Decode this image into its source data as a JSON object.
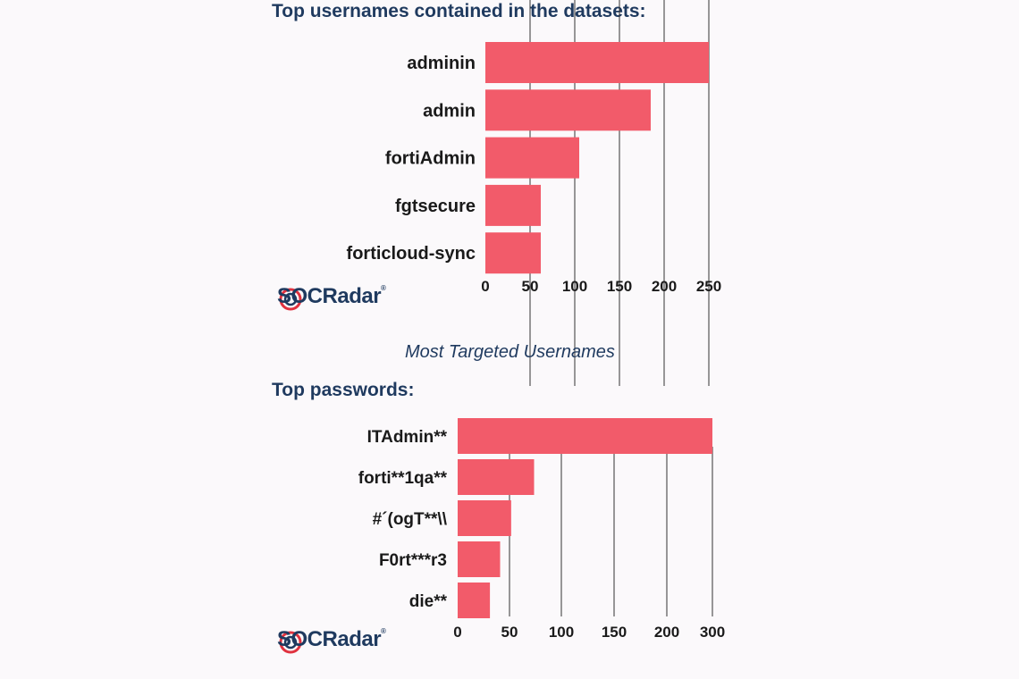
{
  "colors": {
    "bar": "#f25b6a",
    "title": "#1f3a5f",
    "gridline": "#333333",
    "background": "#fbf9fb"
  },
  "subtitle": "Most Targeted Usernames",
  "logo": {
    "brand_prefix": "SOC",
    "brand_suffix": "Radar",
    "registered_mark": "®"
  },
  "chart_data": [
    {
      "type": "bar",
      "orientation": "horizontal",
      "title": "Top usernames contained in the datasets:",
      "categories": [
        "adminin",
        "admin",
        "fortiAdmin",
        "fgtsecure",
        "forticloud-sync"
      ],
      "values": [
        250,
        185,
        105,
        62,
        62
      ],
      "xlim": [
        0,
        250
      ],
      "xticks": [
        0,
        50,
        100,
        150,
        200,
        250
      ],
      "xtick_labels": [
        "0",
        "50",
        "100",
        "150",
        "200",
        "250"
      ],
      "xlabel": "",
      "ylabel": "",
      "grid": "vertical gridlines"
    },
    {
      "type": "bar",
      "orientation": "horizontal",
      "title": "Top passwords:",
      "categories": [
        "ITAdmin**",
        "forti**1qa**",
        "#´(ogT**\\\\",
        "F0rt***r3",
        "die**"
      ],
      "values": [
        300,
        90,
        63,
        50,
        38
      ],
      "xlim": [
        0,
        300
      ],
      "xticks": [
        0,
        50,
        100,
        150,
        200,
        300
      ],
      "xtick_labels": [
        "0",
        "50",
        "100",
        "150",
        "200",
        "300"
      ],
      "xlabel": "",
      "ylabel": "",
      "grid": "vertical gridlines"
    }
  ]
}
